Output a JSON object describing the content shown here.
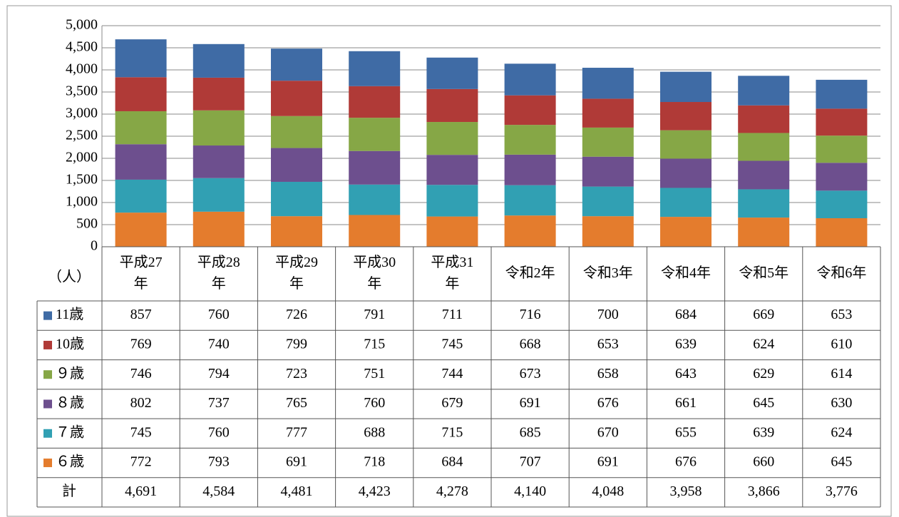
{
  "chart_data": {
    "type": "stacked_bar",
    "unit_label": "（人）",
    "categories": [
      "平成27\n年",
      "平成28\n年",
      "平成29\n年",
      "平成30\n年",
      "平成31\n年",
      "令和2年",
      "令和3年",
      "令和4年",
      "令和5年",
      "令和6年"
    ],
    "series": [
      {
        "name": "11歳",
        "color": "#3f6ba5",
        "values": [
          857,
          760,
          726,
          791,
          711,
          716,
          700,
          684,
          669,
          653
        ]
      },
      {
        "name": "10歳",
        "color": "#b03a37",
        "values": [
          769,
          740,
          799,
          715,
          745,
          668,
          653,
          639,
          624,
          610
        ]
      },
      {
        "name": "９歳",
        "color": "#86a746",
        "values": [
          746,
          794,
          723,
          751,
          744,
          673,
          658,
          643,
          629,
          614
        ]
      },
      {
        "name": "８歳",
        "color": "#6d4f8e",
        "values": [
          802,
          737,
          765,
          760,
          679,
          691,
          676,
          661,
          645,
          630
        ]
      },
      {
        "name": "７歳",
        "color": "#31a0b3",
        "values": [
          745,
          760,
          777,
          688,
          715,
          685,
          670,
          655,
          639,
          624
        ]
      },
      {
        "name": "６歳",
        "color": "#e47c2d",
        "values": [
          772,
          793,
          691,
          718,
          684,
          707,
          691,
          676,
          660,
          645
        ]
      }
    ],
    "total_label": "計",
    "totals": [
      "4,691",
      "4,584",
      "4,481",
      "4,423",
      "4,278",
      "4,140",
      "4,048",
      "3,958",
      "3,866",
      "3,776"
    ],
    "ylim": [
      0,
      5000
    ],
    "yticks": [
      0,
      {
        "value": 500,
        "label": "500"
      },
      {
        "value": 1000,
        "label": "1,000"
      },
      {
        "value": 1500,
        "label": "1,500"
      },
      {
        "value": 2000,
        "label": "2,000"
      },
      {
        "value": 2500,
        "label": "2,500"
      },
      {
        "value": 3000,
        "label": "3,000"
      },
      {
        "value": 3500,
        "label": "3,500"
      },
      {
        "value": 4000,
        "label": "4,000"
      },
      {
        "value": 4500,
        "label": "4,500"
      },
      {
        "value": 5000,
        "label": "5,000"
      }
    ],
    "grid": true
  }
}
